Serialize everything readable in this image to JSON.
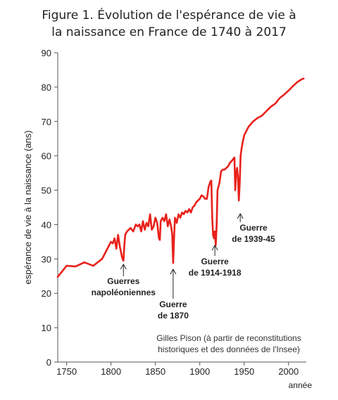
{
  "chart_data": {
    "type": "line",
    "title_line1": "Figure 1. Évolution de l'espérance de vie à",
    "title_line2": "la naissance en France de 1740 à 2017",
    "xlabel": "année",
    "ylabel": "espérance de vie à la naissance (ans)",
    "xlim": [
      1740,
      2020
    ],
    "ylim": [
      0,
      90
    ],
    "xticks": [
      1750,
      1800,
      1850,
      1900,
      1950,
      2000
    ],
    "yticks": [
      0,
      10,
      20,
      30,
      40,
      50,
      60,
      70,
      80,
      90
    ],
    "grid": false,
    "series": [
      {
        "color": "#e8211b",
        "x": [
          1740,
          1750,
          1760,
          1770,
          1780,
          1790,
          1795,
          1800,
          1802,
          1804,
          1806,
          1808,
          1810,
          1812,
          1813,
          1814,
          1815,
          1816,
          1818,
          1820,
          1822,
          1825,
          1828,
          1830,
          1832,
          1834,
          1836,
          1838,
          1840,
          1842,
          1844,
          1846,
          1848,
          1850,
          1852,
          1854,
          1855,
          1856,
          1858,
          1860,
          1862,
          1864,
          1866,
          1868,
          1869,
          1870,
          1871,
          1872,
          1874,
          1876,
          1878,
          1880,
          1882,
          1884,
          1886,
          1888,
          1890,
          1892,
          1894,
          1896,
          1898,
          1900,
          1902,
          1904,
          1906,
          1908,
          1910,
          1912,
          1913,
          1914,
          1915,
          1916,
          1917,
          1918,
          1919,
          1920,
          1922,
          1924,
          1926,
          1928,
          1930,
          1932,
          1934,
          1936,
          1938,
          1939,
          1940,
          1941,
          1942,
          1943,
          1944,
          1945,
          1946,
          1947,
          1948,
          1950,
          1955,
          1960,
          1965,
          1970,
          1975,
          1980,
          1985,
          1990,
          1995,
          2000,
          2005,
          2010,
          2015,
          2017
        ],
        "values": [
          24.8,
          28,
          27.8,
          29,
          28,
          30,
          32.5,
          35,
          34.5,
          36,
          33,
          37,
          33.5,
          31,
          30,
          29.5,
          34,
          37,
          38,
          38.5,
          39,
          38,
          40,
          39.5,
          40,
          38,
          41,
          38.5,
          40.5,
          39.5,
          43,
          38.5,
          39.5,
          42,
          40.5,
          36,
          35.5,
          41,
          42,
          41,
          43,
          39.5,
          41.5,
          39,
          37,
          28.8,
          36,
          42,
          40.5,
          43,
          42,
          43.5,
          43,
          44,
          43.5,
          44.5,
          43.5,
          45,
          45.5,
          46.5,
          47,
          47.5,
          48.5,
          48.2,
          47.5,
          47.5,
          51,
          52.5,
          52.8,
          42,
          37,
          36,
          38,
          34,
          40,
          50,
          52,
          55.5,
          56,
          56,
          56.5,
          57,
          58,
          58.5,
          59.2,
          59.5,
          50,
          55,
          56.5,
          54,
          47,
          52,
          60,
          62,
          63.5,
          66,
          68.5,
          70,
          71,
          71.7,
          73,
          74.3,
          75.2,
          76.8,
          77.8,
          79,
          80.3,
          81.5,
          82.3,
          82.5
        ]
      }
    ],
    "annotations": [
      {
        "lines": [
          "Guerres",
          "napoléoniennes"
        ],
        "x": 1814,
        "y": 29.5
      },
      {
        "lines": [
          "Guerre",
          "de 1870"
        ],
        "x": 1870,
        "y": 28.8
      },
      {
        "lines": [
          "Guerre",
          "de 1914-1918"
        ],
        "x": 1917,
        "y": 34
      },
      {
        "lines": [
          "Guerre",
          "de 1939-45"
        ],
        "x": 1944,
        "y": 47
      }
    ],
    "source_line1": "Gilles Pison (à partir de reconstitutions",
    "source_line2": "historiques et des données de l'Insee)"
  }
}
